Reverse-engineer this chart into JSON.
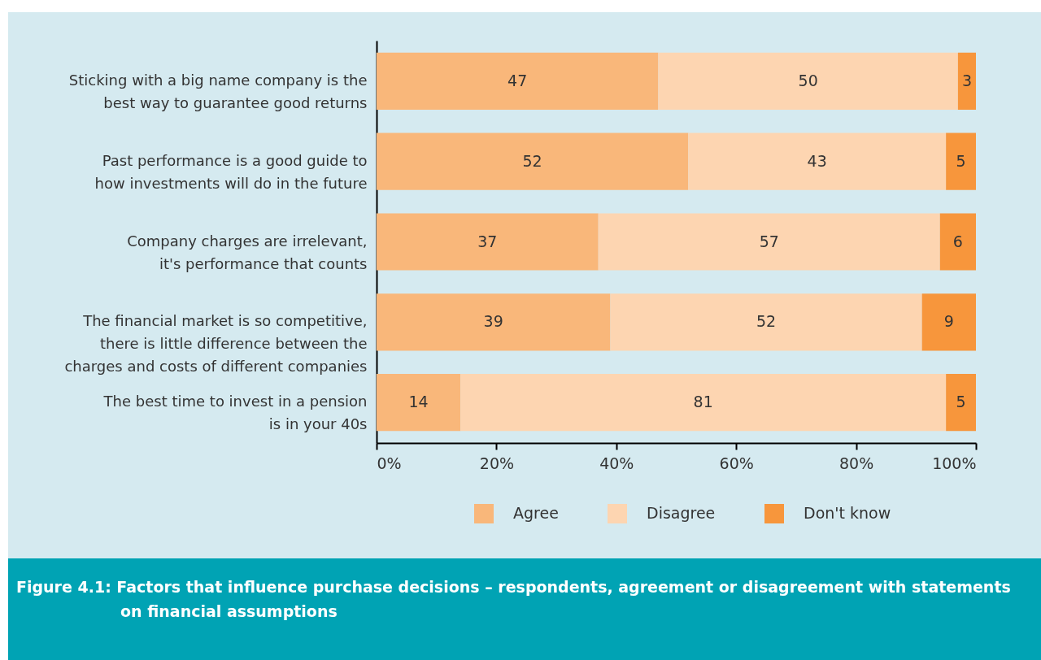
{
  "chart_data": {
    "type": "bar",
    "orientation": "horizontal",
    "stacked": true,
    "title": "Figure 4.1: Factors that influence purchase decisions – respondents, agreement or disagreement with statements on financial assumptions",
    "categories": [
      "Sticking with a big name company is the\nbest way to guarantee good returns",
      "Past performance is a good guide to\nhow investments will do in the future",
      "Company charges are irrelevant,\nit's performance that counts",
      "The financial market is so competitive,\nthere is little difference between the\ncharges and costs of different companies",
      "The best time to invest in a pension\nis in your 40s"
    ],
    "series": [
      {
        "name": "Agree",
        "color": "#f9b77a",
        "values": [
          47,
          52,
          37,
          39,
          14
        ]
      },
      {
        "name": "Disagree",
        "color": "#fdd5b1",
        "values": [
          50,
          43,
          57,
          52,
          81
        ]
      },
      {
        "name": "Don't know",
        "color": "#f7963c",
        "values": [
          3,
          5,
          6,
          9,
          5
        ]
      }
    ],
    "xlim": [
      0,
      100
    ],
    "xticks": [
      {
        "value": 0,
        "label": "0%"
      },
      {
        "value": 20,
        "label": "20%"
      },
      {
        "value": 40,
        "label": "40%"
      },
      {
        "value": 60,
        "label": "60%"
      },
      {
        "value": 80,
        "label": "80%"
      },
      {
        "value": 100,
        "label": "100%"
      }
    ],
    "data_labels": true,
    "grid": false,
    "legend": "bottom"
  }
}
